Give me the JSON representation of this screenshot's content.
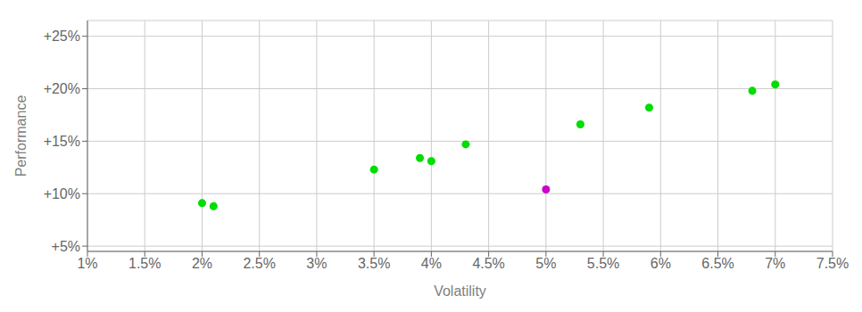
{
  "chart_data": {
    "type": "scatter",
    "xlabel": "Volatility",
    "ylabel": "Performance",
    "xlim": [
      0.01,
      0.075
    ],
    "ylim": [
      0.045,
      0.265
    ],
    "xticks": [
      {
        "value": 0.01,
        "label": "1%"
      },
      {
        "value": 0.015,
        "label": "1.5%"
      },
      {
        "value": 0.02,
        "label": "2%"
      },
      {
        "value": 0.025,
        "label": "2.5%"
      },
      {
        "value": 0.03,
        "label": "3%"
      },
      {
        "value": 0.035,
        "label": "3.5%"
      },
      {
        "value": 0.04,
        "label": "4%"
      },
      {
        "value": 0.045,
        "label": "4.5%"
      },
      {
        "value": 0.05,
        "label": "5%"
      },
      {
        "value": 0.055,
        "label": "5.5%"
      },
      {
        "value": 0.06,
        "label": "6%"
      },
      {
        "value": 0.065,
        "label": "6.5%"
      },
      {
        "value": 0.07,
        "label": "7%"
      },
      {
        "value": 0.075,
        "label": "7.5%"
      }
    ],
    "yticks": [
      {
        "value": 0.05,
        "label": "+5%"
      },
      {
        "value": 0.1,
        "label": "+10%"
      },
      {
        "value": 0.15,
        "label": "+15%"
      },
      {
        "value": 0.2,
        "label": "+20%"
      },
      {
        "value": 0.25,
        "label": "+25%"
      }
    ],
    "grid": true,
    "series": [
      {
        "color": "#00dd00",
        "x": [
          0.02,
          0.021,
          0.035,
          0.039,
          0.04,
          0.043,
          0.053,
          0.059,
          0.068,
          0.07
        ],
        "values": [
          0.091,
          0.088,
          0.123,
          0.134,
          0.131,
          0.147,
          0.166,
          0.182,
          0.198,
          0.204
        ]
      },
      {
        "color": "#cc00cc",
        "x": [
          0.05
        ],
        "values": [
          0.104
        ]
      }
    ]
  }
}
